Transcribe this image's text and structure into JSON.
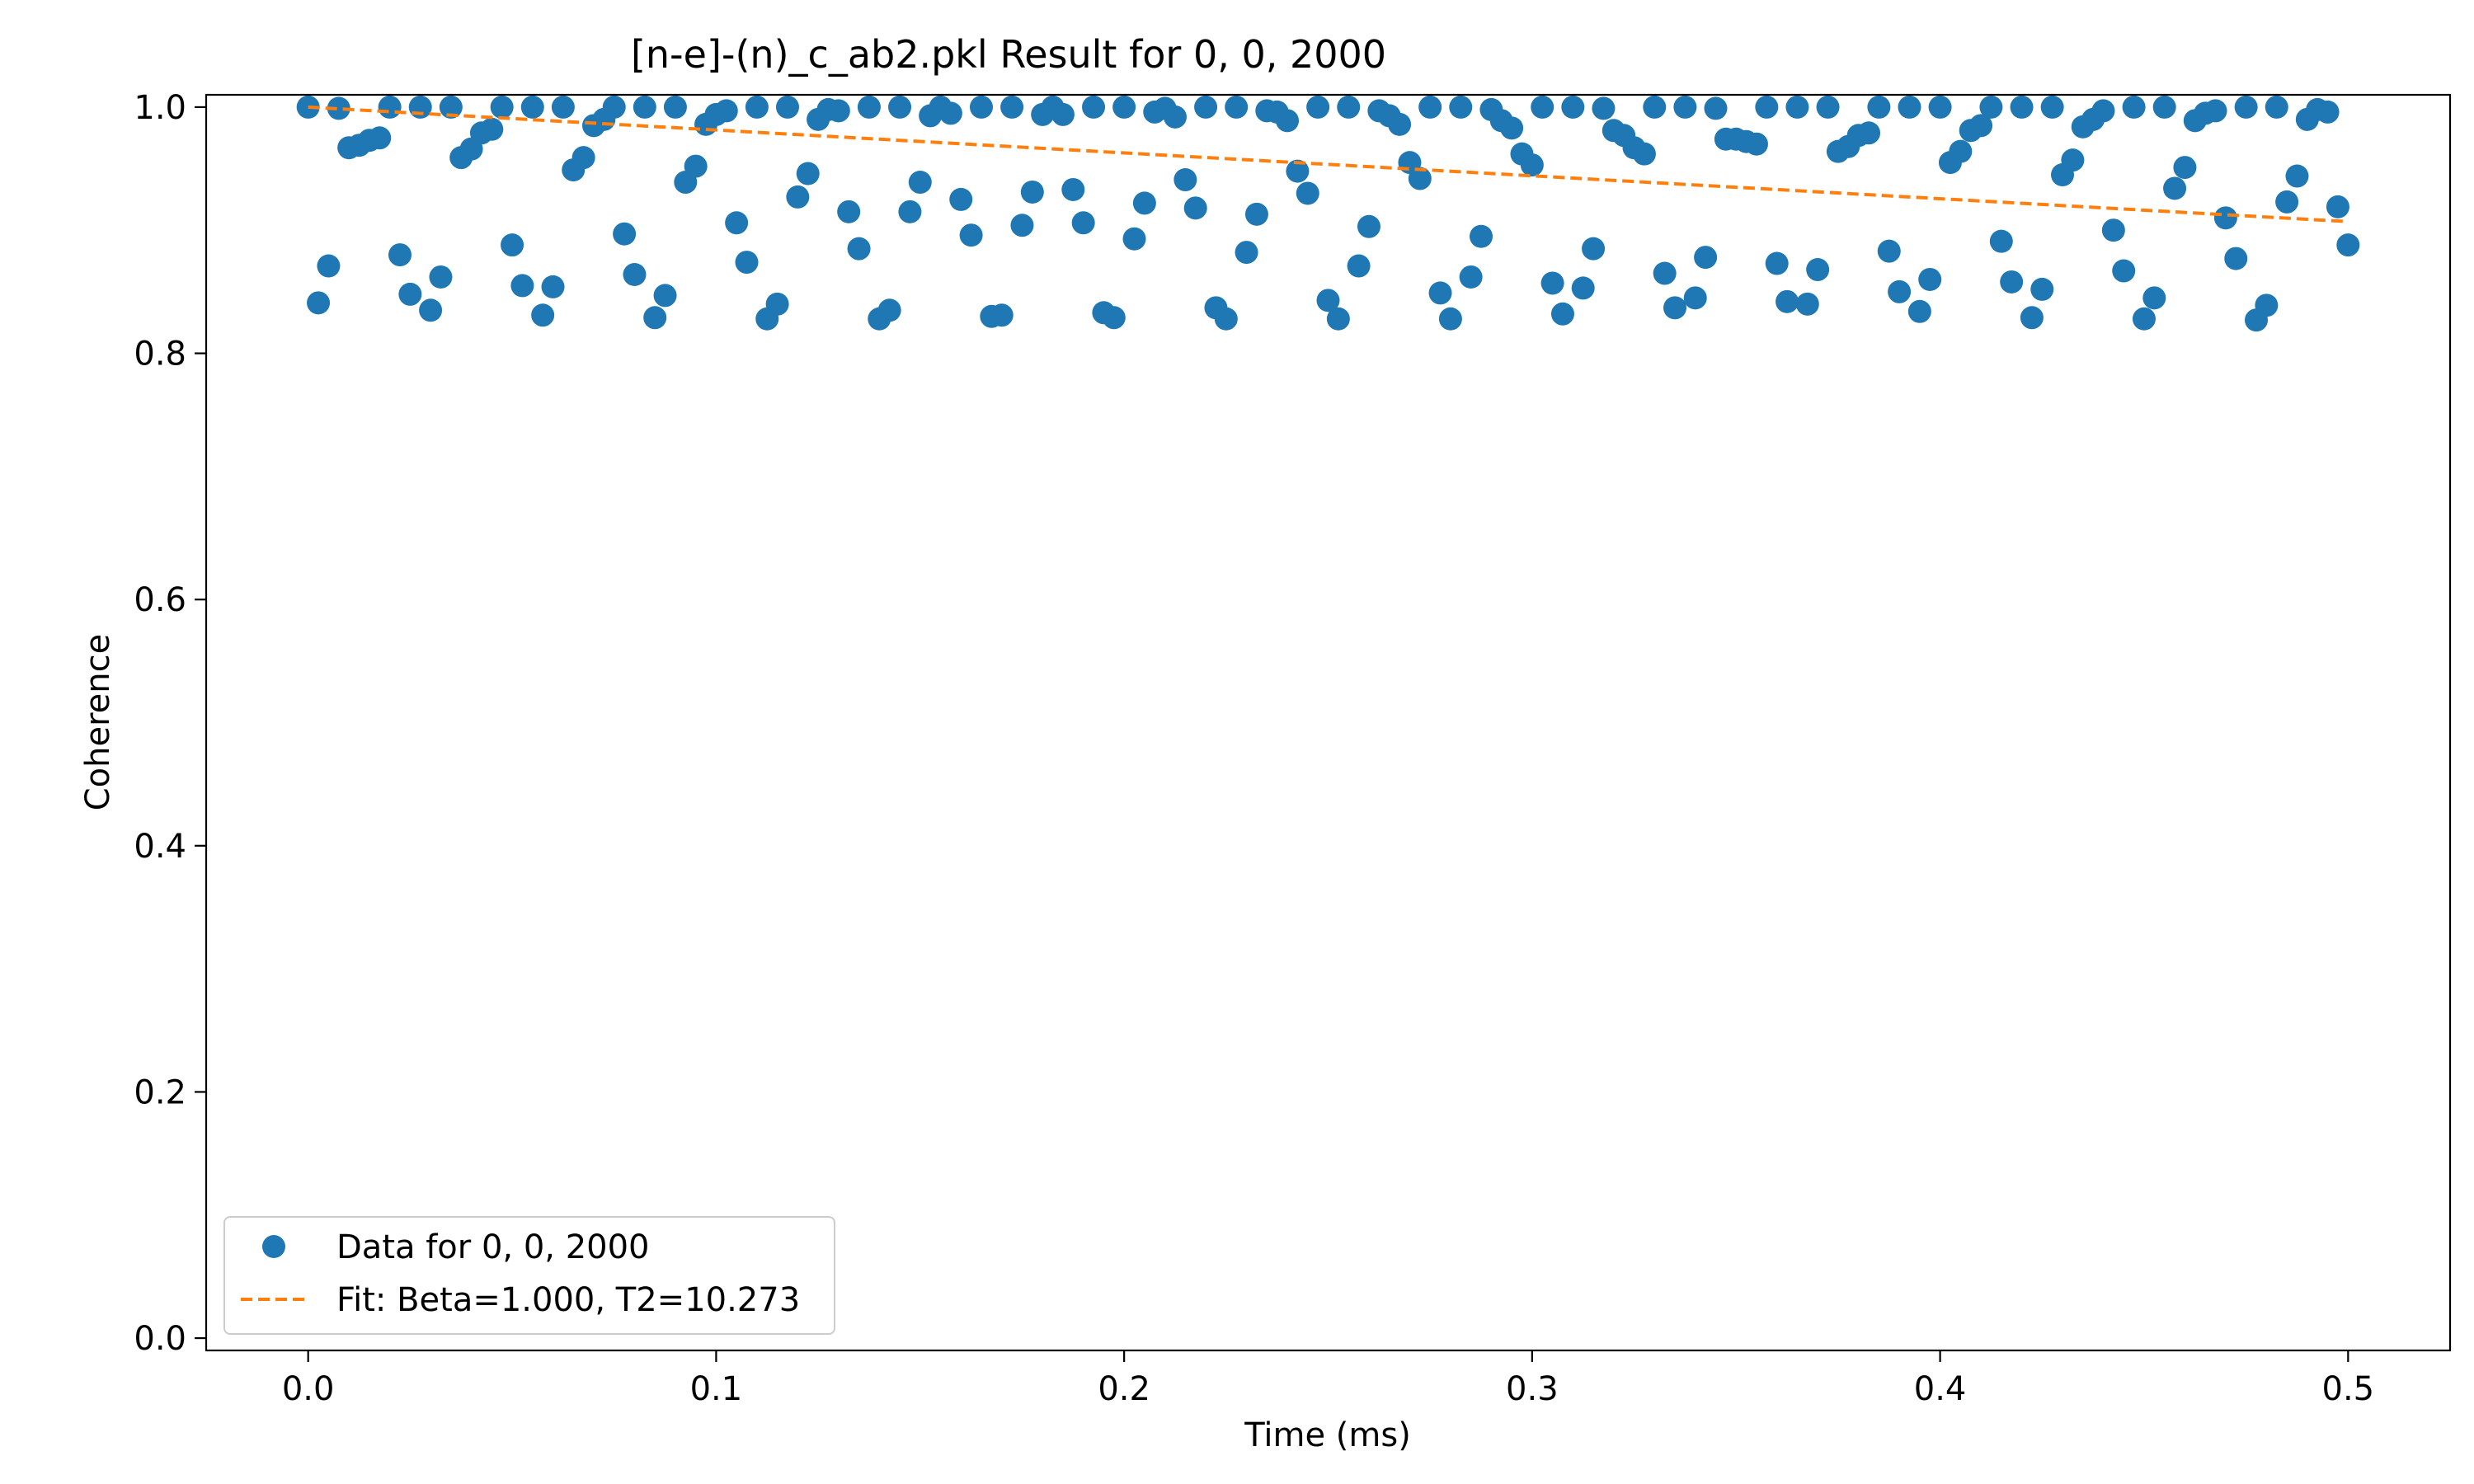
{
  "chart_data": {
    "type": "scatter",
    "title": "[n-e]-(n)_c_ab2.pkl Result for 0, 0, 2000",
    "xlabel": "Time (ms)",
    "ylabel": "Coherence",
    "xlim": [
      -0.025,
      0.525
    ],
    "ylim": [
      -0.01,
      1.01
    ],
    "x_ticks": [
      0.0,
      0.1,
      0.2,
      0.3,
      0.4,
      0.5
    ],
    "x_tick_labels": [
      "0.0",
      "0.1",
      "0.2",
      "0.3",
      "0.4",
      "0.5"
    ],
    "y_ticks": [
      0.0,
      0.2,
      0.4,
      0.6,
      0.8,
      1.0
    ],
    "y_tick_labels": [
      "0.0",
      "0.2",
      "0.4",
      "0.6",
      "0.8",
      "1.0"
    ],
    "grid": false,
    "legend": {
      "placement": "lower-left"
    },
    "series": [
      {
        "name": "Data for 0, 0, 2000",
        "kind": "markers",
        "color": "#1f77b4",
        "points": [
          [
            0.0,
            1.0
          ],
          [
            0.0025,
            0.841
          ],
          [
            0.005,
            0.871
          ],
          [
            0.0075,
            0.999
          ],
          [
            0.01,
            0.967
          ],
          [
            0.0125,
            0.969
          ],
          [
            0.015,
            0.973
          ],
          [
            0.0175,
            0.975
          ],
          [
            0.02,
            1.0
          ],
          [
            0.0225,
            0.88
          ],
          [
            0.025,
            0.848
          ],
          [
            0.0275,
            1.0
          ],
          [
            0.03,
            0.835
          ],
          [
            0.0325,
            0.862
          ],
          [
            0.035,
            1.0
          ],
          [
            0.0375,
            0.959
          ],
          [
            0.04,
            0.966
          ],
          [
            0.0425,
            0.979
          ],
          [
            0.045,
            0.982
          ],
          [
            0.0475,
            1.0
          ],
          [
            0.05,
            0.888
          ],
          [
            0.0525,
            0.855
          ],
          [
            0.055,
            1.0
          ],
          [
            0.0575,
            0.831
          ],
          [
            0.06,
            0.854
          ],
          [
            0.0625,
            1.0
          ],
          [
            0.065,
            0.949
          ],
          [
            0.0675,
            0.959
          ],
          [
            0.07,
            0.985
          ],
          [
            0.0725,
            0.99
          ],
          [
            0.075,
            1.0
          ],
          [
            0.0775,
            0.897
          ],
          [
            0.08,
            0.864
          ],
          [
            0.0825,
            1.0
          ],
          [
            0.085,
            0.829
          ],
          [
            0.0875,
            0.847
          ],
          [
            0.09,
            1.0
          ],
          [
            0.0925,
            0.939
          ],
          [
            0.095,
            0.952
          ],
          [
            0.0975,
            0.986
          ],
          [
            0.1,
            0.994
          ],
          [
            0.1025,
            0.997
          ],
          [
            0.105,
            0.906
          ],
          [
            0.1075,
            0.874
          ],
          [
            0.11,
            1.0
          ],
          [
            0.1125,
            0.828
          ],
          [
            0.115,
            0.84
          ],
          [
            0.1175,
            1.0
          ],
          [
            0.12,
            0.927
          ],
          [
            0.1225,
            0.946
          ],
          [
            0.125,
            0.99
          ],
          [
            0.1275,
            0.998
          ],
          [
            0.13,
            0.997
          ],
          [
            0.1325,
            0.915
          ],
          [
            0.135,
            0.885
          ],
          [
            0.1375,
            1.0
          ],
          [
            0.14,
            0.828
          ],
          [
            0.1425,
            0.835
          ],
          [
            0.145,
            1.0
          ],
          [
            0.1475,
            0.915
          ],
          [
            0.15,
            0.939
          ],
          [
            0.1525,
            0.993
          ],
          [
            0.155,
            1.0
          ],
          [
            0.1575,
            0.995
          ],
          [
            0.16,
            0.925
          ],
          [
            0.1625,
            0.896
          ],
          [
            0.165,
            1.0
          ],
          [
            0.1675,
            0.83
          ],
          [
            0.17,
            0.831
          ],
          [
            0.1725,
            1.0
          ],
          [
            0.175,
            0.904
          ],
          [
            0.1775,
            0.931
          ],
          [
            0.18,
            0.994
          ],
          [
            0.1825,
            1.0
          ],
          [
            0.185,
            0.994
          ],
          [
            0.1875,
            0.933
          ],
          [
            0.19,
            0.906
          ],
          [
            0.1925,
            1.0
          ],
          [
            0.195,
            0.833
          ],
          [
            0.1975,
            0.829
          ],
          [
            0.2,
            1.0
          ],
          [
            0.2025,
            0.893
          ],
          [
            0.205,
            0.922
          ],
          [
            0.2075,
            0.996
          ],
          [
            0.21,
            0.999
          ],
          [
            0.2125,
            0.992
          ],
          [
            0.215,
            0.941
          ],
          [
            0.2175,
            0.918
          ],
          [
            0.22,
            1.0
          ],
          [
            0.2225,
            0.837
          ],
          [
            0.225,
            0.828
          ],
          [
            0.2275,
            1.0
          ],
          [
            0.23,
            0.882
          ],
          [
            0.2325,
            0.913
          ],
          [
            0.235,
            0.997
          ],
          [
            0.2375,
            0.996
          ],
          [
            0.24,
            0.989
          ],
          [
            0.2425,
            0.948
          ],
          [
            0.245,
            0.93
          ],
          [
            0.2475,
            1.0
          ],
          [
            0.25,
            0.843
          ],
          [
            0.2525,
            0.828
          ],
          [
            0.255,
            1.0
          ],
          [
            0.2575,
            0.871
          ],
          [
            0.26,
            0.903
          ],
          [
            0.2625,
            0.997
          ],
          [
            0.265,
            0.993
          ],
          [
            0.2675,
            0.986
          ],
          [
            0.27,
            0.955
          ],
          [
            0.2725,
            0.942
          ],
          [
            0.275,
            1.0
          ],
          [
            0.2775,
            0.849
          ],
          [
            0.28,
            0.828
          ],
          [
            0.2825,
            1.0
          ],
          [
            0.285,
            0.862
          ],
          [
            0.2875,
            0.895
          ],
          [
            0.29,
            0.998
          ],
          [
            0.2925,
            0.989
          ],
          [
            0.295,
            0.983
          ],
          [
            0.2975,
            0.962
          ],
          [
            0.3,
            0.953
          ],
          [
            0.3025,
            1.0
          ],
          [
            0.305,
            0.857
          ],
          [
            0.3075,
            0.832
          ],
          [
            0.31,
            1.0
          ],
          [
            0.3125,
            0.853
          ],
          [
            0.315,
            0.885
          ],
          [
            0.3175,
            0.999
          ],
          [
            0.32,
            0.981
          ],
          [
            0.3225,
            0.977
          ],
          [
            0.325,
            0.967
          ],
          [
            0.3275,
            0.962
          ],
          [
            0.33,
            1.0
          ],
          [
            0.3325,
            0.865
          ],
          [
            0.335,
            0.837
          ],
          [
            0.3375,
            1.0
          ],
          [
            0.34,
            0.845
          ],
          [
            0.3425,
            0.878
          ],
          [
            0.345,
            0.999
          ],
          [
            0.3475,
            0.974
          ],
          [
            0.35,
            0.974
          ],
          [
            0.3525,
            0.972
          ],
          [
            0.355,
            0.97
          ],
          [
            0.3575,
            1.0
          ],
          [
            0.36,
            0.873
          ],
          [
            0.3625,
            0.842
          ],
          [
            0.365,
            1.0
          ],
          [
            0.3675,
            0.84
          ],
          [
            0.37,
            0.868
          ],
          [
            0.3725,
            1.0
          ],
          [
            0.375,
            0.964
          ],
          [
            0.3775,
            0.968
          ],
          [
            0.38,
            0.977
          ],
          [
            0.3825,
            0.979
          ],
          [
            0.385,
            1.0
          ],
          [
            0.3875,
            0.883
          ],
          [
            0.39,
            0.85
          ],
          [
            0.3925,
            1.0
          ],
          [
            0.395,
            0.834
          ],
          [
            0.3975,
            0.86
          ],
          [
            0.4,
            1.0
          ],
          [
            0.4025,
            0.955
          ],
          [
            0.405,
            0.964
          ],
          [
            0.4075,
            0.981
          ],
          [
            0.41,
            0.985
          ],
          [
            0.4125,
            1.0
          ],
          [
            0.415,
            0.891
          ],
          [
            0.4175,
            0.858
          ],
          [
            0.42,
            1.0
          ],
          [
            0.4225,
            0.829
          ],
          [
            0.425,
            0.852
          ],
          [
            0.4275,
            1.0
          ],
          [
            0.43,
            0.945
          ],
          [
            0.4325,
            0.957
          ],
          [
            0.435,
            0.984
          ],
          [
            0.4375,
            0.99
          ],
          [
            0.44,
            0.997
          ],
          [
            0.4425,
            0.9
          ],
          [
            0.445,
            0.867
          ],
          [
            0.4475,
            1.0
          ],
          [
            0.45,
            0.828
          ],
          [
            0.4525,
            0.845
          ],
          [
            0.455,
            1.0
          ],
          [
            0.4575,
            0.934
          ],
          [
            0.46,
            0.951
          ],
          [
            0.4625,
            0.989
          ],
          [
            0.465,
            0.995
          ],
          [
            0.4675,
            0.997
          ],
          [
            0.47,
            0.91
          ],
          [
            0.4725,
            0.877
          ],
          [
            0.475,
            1.0
          ],
          [
            0.4775,
            0.827
          ],
          [
            0.48,
            0.839
          ],
          [
            0.4825,
            1.0
          ],
          [
            0.485,
            0.923
          ],
          [
            0.4875,
            0.944
          ],
          [
            0.49,
            0.99
          ],
          [
            0.4925,
            0.998
          ],
          [
            0.495,
            0.996
          ],
          [
            0.4975,
            0.919
          ],
          [
            0.5,
            0.888
          ]
        ]
      },
      {
        "name": "Fit: Beta=1.000, T2=10.273",
        "kind": "dashed-line",
        "color": "#ff7f0e",
        "points": [
          [
            0.0,
            1.0
          ],
          [
            0.5,
            0.907
          ]
        ]
      }
    ]
  }
}
